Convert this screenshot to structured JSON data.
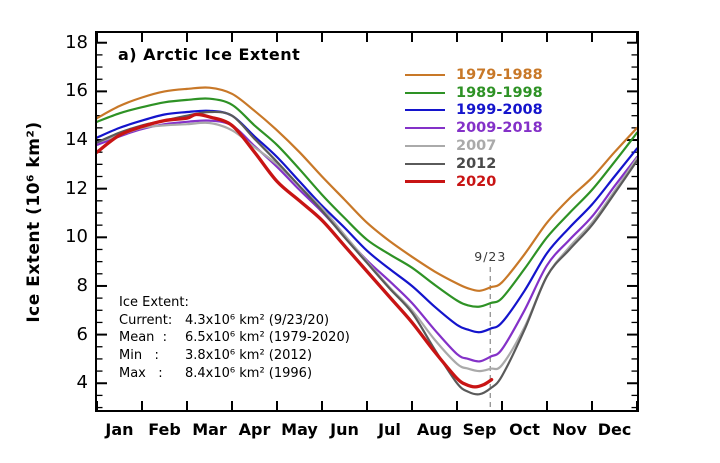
{
  "chart_data": {
    "type": "line",
    "title": "a) Arctic Ice Extent",
    "ylabel": "Ice Extent (10⁶ km²)",
    "xlabel": "",
    "ylim": [
      2.9,
      18.4
    ],
    "yticks": [
      4,
      6,
      8,
      10,
      12,
      14,
      16,
      18
    ],
    "y_minor_step": 0.5,
    "x_months": [
      "Jan",
      "Feb",
      "Mar",
      "Apr",
      "May",
      "Jun",
      "Jul",
      "Aug",
      "Sep",
      "Oct",
      "Nov",
      "Dec"
    ],
    "grid": false,
    "legend_position": "top-right-inside",
    "axis_color": "#000000",
    "series": [
      {
        "name": "1979-1988",
        "color": "#c87828",
        "width": 2.2,
        "x": [
          0,
          0.5,
          1,
          1.5,
          2,
          2.5,
          3,
          3.5,
          4,
          4.5,
          5,
          5.5,
          6,
          6.5,
          7,
          7.5,
          8,
          8.25,
          8.5,
          8.75,
          9,
          9.5,
          10,
          10.5,
          11,
          11.5,
          12
        ],
        "y": [
          14.9,
          15.4,
          15.75,
          16.0,
          16.1,
          16.15,
          15.9,
          15.2,
          14.4,
          13.5,
          12.5,
          11.55,
          10.6,
          9.85,
          9.2,
          8.6,
          8.1,
          7.9,
          7.8,
          7.95,
          8.15,
          9.3,
          10.6,
          11.6,
          12.45,
          13.5,
          14.5
        ]
      },
      {
        "name": "1989-1998",
        "color": "#2e9225",
        "width": 2.2,
        "x": [
          0,
          0.5,
          1,
          1.5,
          2,
          2.5,
          3,
          3.5,
          4,
          4.5,
          5,
          5.5,
          6,
          6.5,
          7,
          7.5,
          8,
          8.25,
          8.5,
          8.75,
          9,
          9.5,
          10,
          10.5,
          11,
          11.5,
          12
        ],
        "y": [
          14.75,
          15.1,
          15.35,
          15.55,
          15.65,
          15.7,
          15.45,
          14.6,
          13.8,
          12.8,
          11.75,
          10.8,
          9.9,
          9.3,
          8.75,
          8.05,
          7.4,
          7.2,
          7.15,
          7.3,
          7.5,
          8.7,
          10.0,
          11.0,
          11.95,
          13.1,
          14.3
        ]
      },
      {
        "name": "1999-2008",
        "color": "#1414cc",
        "width": 2.2,
        "x": [
          0,
          0.5,
          1,
          1.5,
          2,
          2.5,
          3,
          3.5,
          4,
          4.5,
          5,
          5.5,
          6,
          6.5,
          7,
          7.5,
          8,
          8.25,
          8.5,
          8.75,
          9,
          9.5,
          10,
          10.5,
          11,
          11.5,
          12
        ],
        "y": [
          14.1,
          14.5,
          14.8,
          15.05,
          15.15,
          15.2,
          15.0,
          14.15,
          13.3,
          12.3,
          11.3,
          10.4,
          9.45,
          8.7,
          8.0,
          7.15,
          6.4,
          6.2,
          6.1,
          6.25,
          6.5,
          7.8,
          9.35,
          10.4,
          11.35,
          12.5,
          13.65
        ]
      },
      {
        "name": "2009-2018",
        "color": "#8431c8",
        "width": 2.2,
        "x": [
          0,
          0.5,
          1,
          1.5,
          2,
          2.5,
          3,
          3.5,
          4,
          4.5,
          5,
          5.5,
          6,
          6.5,
          7,
          7.5,
          8,
          8.25,
          8.5,
          8.75,
          9,
          9.5,
          10,
          10.5,
          11,
          11.5,
          12
        ],
        "y": [
          13.8,
          14.15,
          14.45,
          14.65,
          14.75,
          14.8,
          14.6,
          13.75,
          12.9,
          11.95,
          11.05,
          10.05,
          9.05,
          8.2,
          7.3,
          6.2,
          5.2,
          5.0,
          4.9,
          5.1,
          5.4,
          7.0,
          8.85,
          9.9,
          10.85,
          12.1,
          13.3
        ]
      },
      {
        "name": "2007",
        "color": "#aaaaaa",
        "width": 2.2,
        "label_color": "#aaaaaa",
        "x": [
          0,
          0.5,
          1,
          1.5,
          2,
          2.5,
          3,
          3.5,
          4,
          4.5,
          5,
          5.5,
          6,
          6.5,
          7,
          7.5,
          8,
          8.25,
          8.5,
          8.75,
          9,
          9.5,
          10,
          10.5,
          11,
          11.5,
          12
        ],
        "y": [
          13.9,
          14.2,
          14.5,
          14.6,
          14.65,
          14.7,
          14.4,
          13.7,
          13.0,
          12.1,
          11.2,
          10.1,
          9.0,
          7.95,
          7.0,
          5.8,
          4.8,
          4.6,
          4.5,
          4.6,
          4.75,
          6.3,
          8.4,
          9.6,
          10.6,
          11.9,
          13.25
        ]
      },
      {
        "name": "2012",
        "color": "#5a5a5a",
        "width": 2.2,
        "label_color": "#4a4a4a",
        "x": [
          0,
          0.5,
          1,
          1.5,
          2,
          2.5,
          3,
          3.5,
          4,
          4.5,
          5,
          5.5,
          6,
          6.5,
          7,
          7.5,
          8,
          8.25,
          8.5,
          8.75,
          9,
          9.5,
          10,
          10.5,
          11,
          11.5,
          12
        ],
        "y": [
          13.9,
          14.3,
          14.6,
          14.8,
          15.0,
          15.15,
          15.0,
          14.05,
          13.1,
          12.1,
          11.1,
          10.0,
          8.95,
          7.9,
          6.9,
          5.4,
          4.0,
          3.65,
          3.55,
          3.8,
          4.3,
          6.2,
          8.4,
          9.5,
          10.5,
          11.8,
          13.15
        ]
      },
      {
        "name": "2020",
        "color": "#c81414",
        "width": 3.3,
        "x": [
          0,
          0.5,
          1,
          1.5,
          2,
          2.2,
          2.5,
          3,
          3.5,
          4,
          4.5,
          5,
          5.5,
          6,
          6.5,
          7,
          7.5,
          8,
          8.2,
          8.4,
          8.6,
          8.77
        ],
        "y": [
          13.5,
          14.2,
          14.55,
          14.8,
          14.9,
          15.05,
          14.95,
          14.6,
          13.5,
          12.3,
          11.5,
          10.7,
          9.65,
          8.6,
          7.55,
          6.5,
          5.3,
          4.2,
          3.95,
          3.85,
          3.95,
          4.15
        ]
      }
    ],
    "annotation_line": {
      "x_month": 8.74,
      "label": "9/23",
      "color": "#999999",
      "style": "dashed"
    },
    "info_box": {
      "lines": [
        {
          "label": "Ice Extent:",
          "value": ""
        },
        {
          "label": "Current:",
          "value": "4.3x10⁶ km² (9/23/20)"
        },
        {
          "label": "Mean  :",
          "value": "6.5x10⁶ km² (1979-2020)"
        },
        {
          "label": "Min   :",
          "value": "3.8x10⁶ km² (2012)"
        },
        {
          "label": "Max   :",
          "value": "8.4x10⁶ km² (1996)"
        }
      ]
    }
  }
}
